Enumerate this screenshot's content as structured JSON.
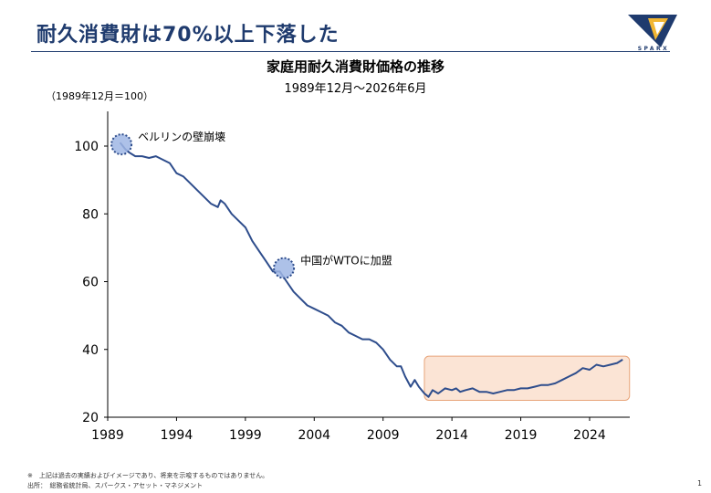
{
  "slide": {
    "title": "耐久消費財は70%以上下落した",
    "logo_text": "SPARX",
    "page_number": "1",
    "footnote": "※　上記は過去の実績およびイメージであり、将来を示唆するものではありません。",
    "source": "出所：　総務省統計局、スパークス・アセット・マネジメント"
  },
  "colors": {
    "title": "#1f3b6e",
    "line": "#2e4d8c",
    "highlight_fill": "#fbe4d5",
    "highlight_stroke": "#e8a47a",
    "marker_fill": "#9fb6e4",
    "marker_stroke": "#2e4d8c"
  },
  "chart_data": {
    "type": "line",
    "title": "家庭用耐久消費財価格の推移",
    "subtitle": "1989年12月～2026年6月",
    "ylabel": "（1989年12月＝100）",
    "xlabel": "",
    "xlim": [
      1989,
      2027
    ],
    "ylim": [
      20,
      110
    ],
    "xticks": [
      1989,
      1994,
      1999,
      2004,
      2009,
      2014,
      2019,
      2024
    ],
    "yticks": [
      20,
      40,
      60,
      80,
      100
    ],
    "grid": false,
    "legend": "none",
    "series": [
      {
        "x": [
          1989.9,
          1990.3,
          1990.6,
          1991.0,
          1991.5,
          1992.0,
          1992.5,
          1993.0,
          1993.5,
          1994.0,
          1994.5,
          1995.0,
          1995.5,
          1996.0,
          1996.5,
          1997.0,
          1997.2,
          1997.5,
          1998.0,
          1998.5,
          1999.0,
          1999.5,
          2000.0,
          2000.5,
          2001.0,
          2001.5,
          2002.0,
          2002.5,
          2003.0,
          2003.5,
          2004.0,
          2004.5,
          2005.0,
          2005.5,
          2006.0,
          2006.5,
          2007.0,
          2007.5,
          2008.0,
          2008.5,
          2009.0,
          2009.5,
          2010.0,
          2010.3,
          2010.6,
          2011.0,
          2011.3,
          2011.6,
          2012.0,
          2012.3,
          2012.6,
          2013.0,
          2013.5,
          2014.0,
          2014.3,
          2014.6,
          2015.0,
          2015.5,
          2016.0,
          2016.5,
          2017.0,
          2017.5,
          2018.0,
          2018.5,
          2019.0,
          2019.5,
          2020.0,
          2020.5,
          2021.0,
          2021.5,
          2022.0,
          2022.5,
          2023.0,
          2023.5,
          2024.0,
          2024.5,
          2025.0,
          2025.5,
          2026.0,
          2026.4
        ],
        "values": [
          101,
          99,
          98,
          97,
          97,
          96.5,
          97,
          96,
          95,
          92,
          91,
          89,
          87,
          85,
          83,
          82,
          84,
          83,
          80,
          78,
          76,
          72,
          69,
          66,
          63,
          63,
          60,
          57,
          55,
          53,
          52,
          51,
          50,
          48,
          47,
          45,
          44,
          43,
          43,
          42,
          40,
          37,
          35,
          35,
          32,
          29,
          31,
          29,
          27,
          26,
          28,
          27,
          28.5,
          28,
          28.5,
          27.5,
          28,
          28.5,
          27.5,
          27.5,
          27,
          27.5,
          28,
          28,
          28.5,
          28.5,
          29,
          29.5,
          29.5,
          30,
          31,
          32,
          33,
          34.5,
          34,
          35.5,
          35,
          35.5,
          36,
          37
        ]
      }
    ],
    "annotations": [
      {
        "label": "ベルリンの壁崩壊",
        "x": 1990.0,
        "y": 100.5
      },
      {
        "label": "中国がWTOに加盟",
        "x": 2001.8,
        "y": 64.0
      }
    ],
    "highlight": {
      "x_start": 2012.0,
      "x_end": 2026.9,
      "y_start": 25,
      "y_end": 38
    }
  }
}
